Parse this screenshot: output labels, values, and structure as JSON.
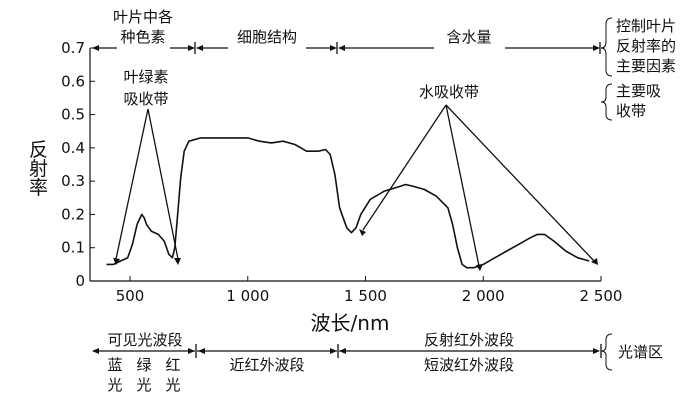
{
  "chart_data": {
    "type": "line",
    "xlabel": "波长/nm",
    "ylabel": "反射率",
    "xlim": [
      330,
      2500
    ],
    "ylim": [
      0,
      0.7
    ],
    "x_ticks": [
      {
        "value": 500,
        "label": "500"
      },
      {
        "value": 1000,
        "label": "1 000"
      },
      {
        "value": 1500,
        "label": "1 500"
      },
      {
        "value": 2000,
        "label": "2 000"
      },
      {
        "value": 2500,
        "label": "2 500"
      }
    ],
    "y_ticks": [
      {
        "value": 0,
        "label": "0"
      },
      {
        "value": 0.1,
        "label": "0.1"
      },
      {
        "value": 0.2,
        "label": "0.2"
      },
      {
        "value": 0.3,
        "label": "0.3"
      },
      {
        "value": 0.4,
        "label": "0.4"
      },
      {
        "value": 0.5,
        "label": "0.5"
      },
      {
        "value": 0.6,
        "label": "0.6"
      },
      {
        "value": 0.7,
        "label": "0.7"
      }
    ],
    "series": [
      {
        "x": [
          400,
          430,
          460,
          490,
          510,
          530,
          550,
          560,
          570,
          590,
          620,
          645,
          665,
          680,
          690,
          700,
          715,
          730,
          750,
          800,
          900,
          1000,
          1050,
          1100,
          1150,
          1200,
          1250,
          1300,
          1330,
          1350,
          1370,
          1390,
          1420,
          1440,
          1460,
          1480,
          1520,
          1580,
          1650,
          1670,
          1700,
          1750,
          1800,
          1850,
          1870,
          1890,
          1910,
          1930,
          1960,
          2000,
          2050,
          2100,
          2150,
          2200,
          2230,
          2260,
          2300,
          2350,
          2400,
          2450
        ],
        "y": [
          0.05,
          0.05,
          0.06,
          0.07,
          0.11,
          0.17,
          0.2,
          0.19,
          0.17,
          0.15,
          0.14,
          0.12,
          0.08,
          0.07,
          0.1,
          0.18,
          0.31,
          0.39,
          0.42,
          0.43,
          0.43,
          0.43,
          0.42,
          0.415,
          0.42,
          0.41,
          0.39,
          0.39,
          0.395,
          0.38,
          0.32,
          0.22,
          0.16,
          0.145,
          0.16,
          0.2,
          0.245,
          0.27,
          0.285,
          0.29,
          0.285,
          0.275,
          0.255,
          0.22,
          0.17,
          0.1,
          0.05,
          0.04,
          0.04,
          0.05,
          0.07,
          0.09,
          0.11,
          0.13,
          0.14,
          0.14,
          0.12,
          0.09,
          0.07,
          0.06
        ]
      }
    ],
    "annotations": [
      {
        "text": "叶绿素",
        "text2": "吸收带"
      },
      {
        "text": "水吸收带"
      }
    ],
    "top_bands": [
      {
        "label1": "叶片中各",
        "label2": "种色素",
        "from": 330,
        "to": 740
      },
      {
        "label1": "细胞结构",
        "from": 740,
        "to": 1330
      },
      {
        "label1": "含水量",
        "from": 1330,
        "to": 2500
      }
    ],
    "right_labels": [
      {
        "lines": [
          "控制叶片",
          "反射率的",
          "主要因素"
        ]
      },
      {
        "lines": [
          "主要吸",
          "收带"
        ]
      },
      {
        "lines": [
          "光谱区"
        ]
      }
    ],
    "bottom_bands": [
      {
        "label": "可见光波段",
        "from": 330,
        "to": 740
      },
      {
        "label": "反射红外波段",
        "from": 1330,
        "to": 2500
      },
      {
        "label": "近红外波段",
        "from": 740,
        "to": 1330
      },
      {
        "label": "短波红外波段",
        "from": 1330,
        "to": 2500
      }
    ],
    "visible_sub": [
      {
        "c1": "蓝",
        "c2": "光"
      },
      {
        "c1": "绿",
        "c2": "光"
      },
      {
        "c1": "红",
        "c2": "光"
      }
    ]
  }
}
